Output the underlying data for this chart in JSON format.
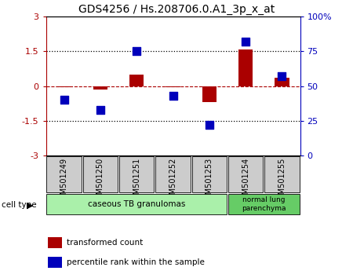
{
  "title": "GDS4256 / Hs.208706.0.A1_3p_x_at",
  "samples": [
    "GSM501249",
    "GSM501250",
    "GSM501251",
    "GSM501252",
    "GSM501253",
    "GSM501254",
    "GSM501255"
  ],
  "transformed_count": [
    -0.05,
    -0.15,
    0.5,
    -0.05,
    -0.7,
    1.6,
    0.35
  ],
  "percentile_rank": [
    40,
    33,
    75,
    43,
    22,
    82,
    57
  ],
  "red_color": "#aa0000",
  "blue_color": "#0000bb",
  "ylim_left": [
    -3,
    3
  ],
  "ylim_right": [
    0,
    100
  ],
  "yticks_left": [
    -3,
    -1.5,
    0,
    1.5,
    3
  ],
  "yticks_right": [
    0,
    25,
    50,
    75,
    100
  ],
  "ytick_labels_right": [
    "0",
    "25",
    "50",
    "75",
    "100%"
  ],
  "group1_label": "caseous TB granulomas",
  "group2_label": "normal lung\nparenchyma",
  "group1_color": "#aaf0aa",
  "group2_color": "#66cc66",
  "cell_type_label": "cell type",
  "legend_red": "transformed count",
  "legend_blue": "percentile rank within the sample",
  "bar_width": 0.4,
  "marker_size": 55,
  "bg_color": "#ffffff",
  "header_bg": "#cccccc"
}
